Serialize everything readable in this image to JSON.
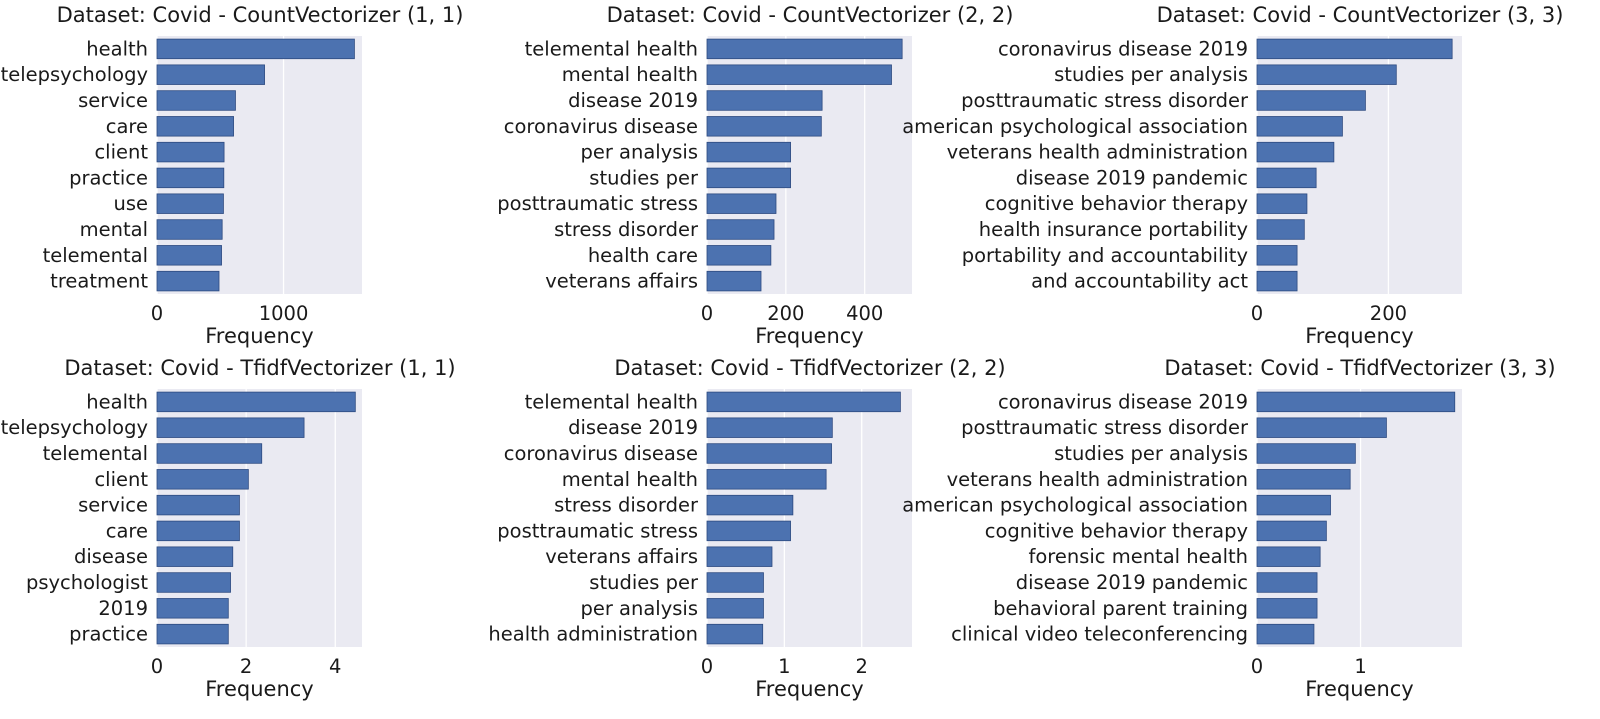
{
  "colors": {
    "bar": "#4c72b0",
    "bar_edge": "#2d4a80",
    "plot_bg": "#eaeaf2",
    "grid": "#ffffff"
  },
  "chart_data": [
    {
      "type": "bar",
      "orientation": "horizontal",
      "title": "Dataset: Covid - CountVectorizer (1, 1)",
      "xlabel": "Frequency",
      "ylabel": "",
      "categories": [
        "health",
        "telepsychology",
        "service",
        "care",
        "client",
        "practice",
        "use",
        "mental",
        "telemental",
        "treatment"
      ],
      "values": [
        1560,
        850,
        620,
        605,
        530,
        528,
        525,
        515,
        510,
        490
      ],
      "xlim": [
        0,
        1620
      ],
      "xticks": [
        0,
        1000
      ],
      "xtick_labels": [
        "0",
        "1000"
      ]
    },
    {
      "type": "bar",
      "orientation": "horizontal",
      "title": "Dataset: Covid - CountVectorizer (2, 2)",
      "xlabel": "Frequency",
      "ylabel": "",
      "categories": [
        "telemental health",
        "mental health",
        "disease 2019",
        "coronavirus disease",
        "per analysis",
        "studies per",
        "posttraumatic stress",
        "stress disorder",
        "health care",
        "veterans affairs"
      ],
      "values": [
        495,
        468,
        292,
        290,
        212,
        212,
        175,
        170,
        162,
        137
      ],
      "xlim": [
        0,
        520
      ],
      "xticks": [
        0,
        200,
        400
      ],
      "xtick_labels": [
        "0",
        "200",
        "400"
      ]
    },
    {
      "type": "bar",
      "orientation": "horizontal",
      "title": "Dataset: Covid - CountVectorizer (3, 3)",
      "xlabel": "Frequency",
      "ylabel": "",
      "categories": [
        "coronavirus disease 2019",
        "studies per analysis",
        "posttraumatic stress disorder",
        "american psychological association",
        "veterans health administration",
        "disease 2019 pandemic",
        "cognitive behavior therapy",
        "health insurance portability",
        "portability and accountability",
        "and accountability act"
      ],
      "values": [
        297,
        212,
        165,
        130,
        117,
        90,
        76,
        72,
        61,
        61
      ],
      "xlim": [
        0,
        312
      ],
      "xticks": [
        0,
        200
      ],
      "xtick_labels": [
        "0",
        "200"
      ]
    },
    {
      "type": "bar",
      "orientation": "horizontal",
      "title": "Dataset: Covid - TfidfVectorizer (1, 1)",
      "xlabel": "Frequency",
      "ylabel": "",
      "categories": [
        "health",
        "telepsychology",
        "telemental",
        "client",
        "service",
        "care",
        "disease",
        "psychologist",
        "2019",
        "practice"
      ],
      "values": [
        4.45,
        3.3,
        2.35,
        2.05,
        1.85,
        1.85,
        1.7,
        1.65,
        1.6,
        1.6
      ],
      "xlim": [
        0,
        4.6
      ],
      "xticks": [
        0,
        2,
        4
      ],
      "xtick_labels": [
        "0",
        "2",
        "4"
      ]
    },
    {
      "type": "bar",
      "orientation": "horizontal",
      "title": "Dataset: Covid - TfidfVectorizer (2, 2)",
      "xlabel": "Frequency",
      "ylabel": "",
      "categories": [
        "telemental health",
        "disease 2019",
        "coronavirus disease",
        "mental health",
        "stress disorder",
        "posttraumatic stress",
        "veterans affairs",
        "studies per",
        "per analysis",
        "health administration"
      ],
      "values": [
        2.5,
        1.62,
        1.61,
        1.54,
        1.11,
        1.08,
        0.84,
        0.73,
        0.73,
        0.72
      ],
      "xlim": [
        0,
        2.65
      ],
      "xticks": [
        0,
        1,
        2
      ],
      "xtick_labels": [
        "0",
        "1",
        "2"
      ]
    },
    {
      "type": "bar",
      "orientation": "horizontal",
      "title": "Dataset: Covid - TfidfVectorizer (3, 3)",
      "xlabel": "Frequency",
      "ylabel": "",
      "categories": [
        "coronavirus disease 2019",
        "posttraumatic stress disorder",
        "studies per analysis",
        "veterans health administration",
        "american psychological association",
        "cognitive behavior therapy",
        "forensic mental health",
        "disease 2019 pandemic",
        "behavioral parent training",
        "clinical video teleconferencing"
      ],
      "values": [
        1.91,
        1.25,
        0.95,
        0.9,
        0.71,
        0.67,
        0.61,
        0.58,
        0.58,
        0.55
      ],
      "xlim": [
        0,
        1.98
      ],
      "xticks": [
        0,
        1
      ],
      "xtick_labels": [
        "0",
        "1"
      ]
    }
  ]
}
